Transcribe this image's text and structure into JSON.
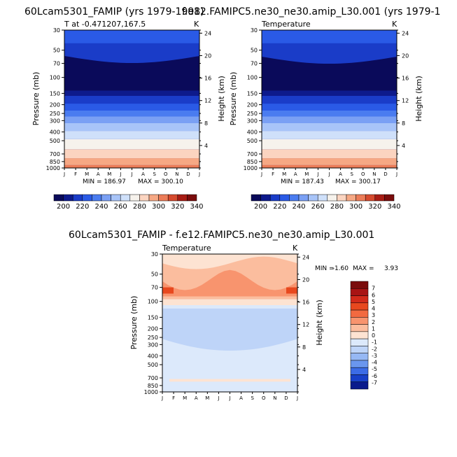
{
  "panel_titles": {
    "left": "60Lcam5301_FAMIP (yrs 1979-1998)",
    "right": "f.e12.FAMIPC5.ne30_ne30.amip_L30.001 (yrs 1979-1",
    "diff": "60Lcam5301_FAMIP - f.e12.FAMIPC5.ne30_ne30.amip_L30.001"
  },
  "chart_data": [
    {
      "type": "heatmap",
      "title": "60Lcam5301_FAMIP (yrs 1979-1998)",
      "subtitle": "T at -0.471207,167.5",
      "units": "K",
      "xlabel": "",
      "ylabel": "Pressure (mb)",
      "ylabel_right": "Height (km)",
      "x": [
        "J",
        "F",
        "M",
        "A",
        "M",
        "J",
        "J",
        "A",
        "S",
        "O",
        "N",
        "D",
        "J"
      ],
      "y_ticks": [
        "30",
        "50",
        "70",
        "100",
        "150",
        "200",
        "250",
        "300",
        "400",
        "500",
        "700",
        "850",
        "1000"
      ],
      "y_right_ticks": [
        "24",
        "20",
        "16",
        "12",
        "8",
        "4"
      ],
      "ylim": [
        30,
        1000
      ],
      "y_scale": "log",
      "min": 186.97,
      "max": 300.1,
      "min_label": "MIN = 186.97",
      "max_label": "MAX = 300.10",
      "colorbar": [
        "200",
        "220",
        "240",
        "260",
        "280",
        "300",
        "320",
        "340"
      ]
    },
    {
      "type": "heatmap",
      "title": "f.e12.FAMIPC5.ne30_ne30.amip_L30.001 (yrs 1979-1",
      "subtitle": "Temperature",
      "units": "K",
      "xlabel": "",
      "ylabel": "Pressure (mb)",
      "ylabel_right": "Height (km)",
      "x": [
        "J",
        "F",
        "M",
        "A",
        "M",
        "J",
        "J",
        "A",
        "S",
        "O",
        "N",
        "D",
        "J"
      ],
      "y_ticks": [
        "30",
        "50",
        "70",
        "100",
        "150",
        "200",
        "250",
        "300",
        "400",
        "500",
        "700",
        "850",
        "1000"
      ],
      "y_right_ticks": [
        "24",
        "20",
        "16",
        "12",
        "8",
        "4"
      ],
      "ylim": [
        30,
        1000
      ],
      "y_scale": "log",
      "min": 187.43,
      "max": 300.17,
      "min_label": "MIN = 187.43",
      "max_label": "MAX = 300.17",
      "colorbar": [
        "200",
        "220",
        "240",
        "260",
        "280",
        "300",
        "320",
        "340"
      ]
    },
    {
      "type": "heatmap",
      "title": "60Lcam5301_FAMIP - f.e12.FAMIPC5.ne30_ne30.amip_L30.001",
      "subtitle": "Temperature",
      "units": "K",
      "xlabel": "",
      "ylabel": "Pressure (mb)",
      "ylabel_right": "Height (km)",
      "x": [
        "J",
        "F",
        "M",
        "A",
        "M",
        "J",
        "J",
        "A",
        "S",
        "O",
        "N",
        "D",
        "J"
      ],
      "y_ticks": [
        "30",
        "50",
        "70",
        "100",
        "150",
        "200",
        "250",
        "300",
        "400",
        "500",
        "700",
        "850",
        "1000"
      ],
      "y_right_ticks": [
        "24",
        "20",
        "16",
        "12",
        "8",
        "4"
      ],
      "ylim": [
        30,
        1000
      ],
      "y_scale": "log",
      "min": -1.6,
      "max": 3.93,
      "min_label": "MIN =",
      "min_value": "-1.60",
      "max_label": "MAX =",
      "max_value": "3.93",
      "colorbar": [
        "7",
        "6",
        "5",
        "4",
        "3",
        "2",
        "1",
        "0",
        "-1",
        "-2",
        "-3",
        "-4",
        "-5",
        "-6",
        "-7"
      ]
    }
  ],
  "colors": {
    "abs_scale": [
      "#0a0a5a",
      "#0d1a8c",
      "#1a3cc8",
      "#2a5ae6",
      "#4a7cf0",
      "#7aa0f4",
      "#a8c4f8",
      "#cfe0fa",
      "#f6f2ec",
      "#fbd4c0",
      "#f6a884",
      "#ec7c58",
      "#d64a2e",
      "#a81c14",
      "#7a0c0c"
    ],
    "diff_scale": [
      "#7a0c0c",
      "#a81414",
      "#d22a1a",
      "#e8481e",
      "#f26a40",
      "#f8946e",
      "#fbbd9e",
      "#fde3d2",
      "#dce9fb",
      "#bed4f8",
      "#96b8f4",
      "#6a96ee",
      "#3c6ce6",
      "#1840c8",
      "#0a1a8c"
    ]
  }
}
